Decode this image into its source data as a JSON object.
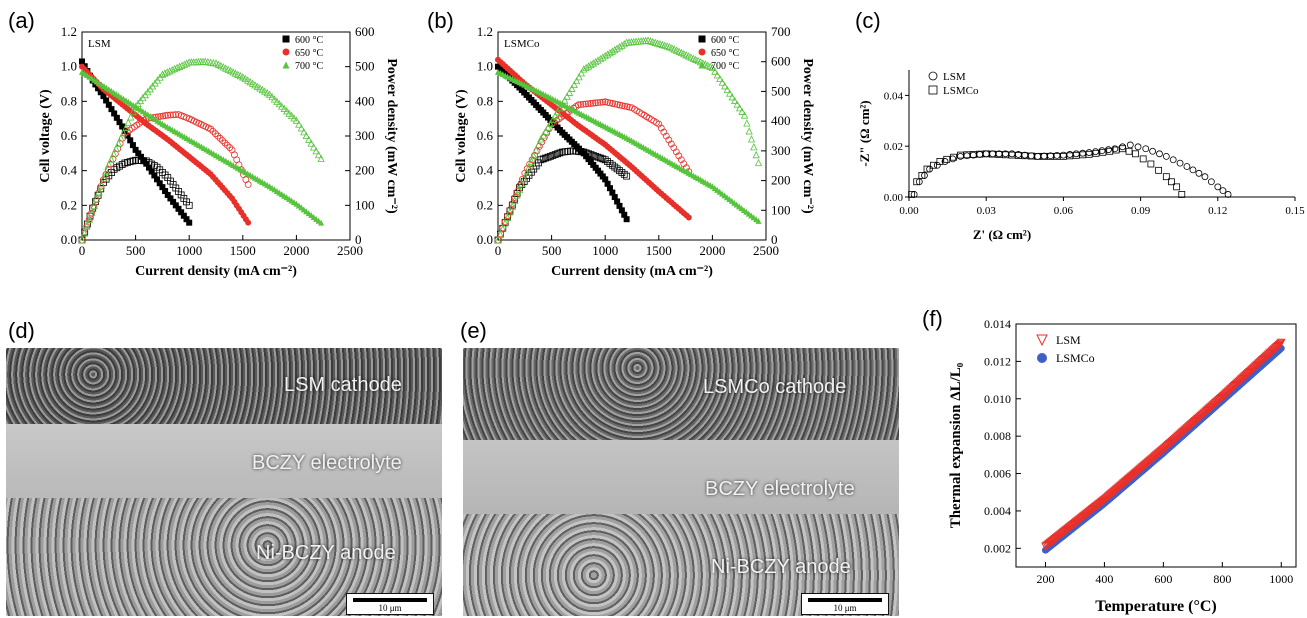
{
  "panels": {
    "a": {
      "letter": "(a)"
    },
    "b": {
      "letter": "(b)"
    },
    "c": {
      "letter": "(c)"
    },
    "d": {
      "letter": "(d)"
    },
    "e": {
      "letter": "(e)"
    },
    "f": {
      "letter": "(f)"
    }
  },
  "sem": {
    "d": {
      "labels": [
        "LSM cathode",
        "BCZY electrolyte",
        "Ni-BCZY anode"
      ],
      "scale": "10 μm"
    },
    "e": {
      "labels": [
        "LSMCo cathode",
        "BCZY electrolyte",
        "Ni-BCZY anode"
      ],
      "scale": "10 μm"
    }
  },
  "chart_data": [
    {
      "id": "a",
      "type": "scatter",
      "inset_label": "LSM",
      "xlabel": "Current density (mA cm⁻²)",
      "ylabel": "Cell voltage (V)",
      "y2label": "Power density (mW cm⁻²)",
      "xlim": [
        0,
        2500
      ],
      "ylim": [
        0,
        1.2
      ],
      "y2lim": [
        0,
        600
      ],
      "xticks": [
        0,
        500,
        1000,
        1500,
        2000,
        2500
      ],
      "yticks": [
        0.0,
        0.2,
        0.4,
        0.6,
        0.8,
        1.0,
        1.2
      ],
      "y2ticks": [
        0,
        100,
        200,
        300,
        400,
        500,
        600
      ],
      "series": [
        {
          "name": "600 °C",
          "color": "#000000",
          "marker": "square",
          "iv": [
            [
              0,
              1.03
            ],
            [
              100,
              0.92
            ],
            [
              200,
              0.83
            ],
            [
              300,
              0.73
            ],
            [
              400,
              0.63
            ],
            [
              500,
              0.52
            ],
            [
              600,
              0.44
            ],
            [
              700,
              0.35
            ],
            [
              800,
              0.26
            ],
            [
              900,
              0.18
            ],
            [
              1000,
              0.1
            ]
          ],
          "power": [
            [
              0,
              0
            ],
            [
              100,
              92
            ],
            [
              200,
              166
            ],
            [
              300,
              204
            ],
            [
              400,
              222
            ],
            [
              500,
              230
            ],
            [
              600,
              228
            ],
            [
              700,
              210
            ],
            [
              800,
              180
            ],
            [
              900,
              140
            ],
            [
              1000,
              100
            ]
          ]
        },
        {
          "name": "650 °C",
          "color": "#e8302a",
          "marker": "circle",
          "iv": [
            [
              0,
              1.0
            ],
            [
              200,
              0.87
            ],
            [
              400,
              0.77
            ],
            [
              600,
              0.67
            ],
            [
              800,
              0.58
            ],
            [
              1000,
              0.48
            ],
            [
              1200,
              0.38
            ],
            [
              1400,
              0.24
            ],
            [
              1550,
              0.1
            ]
          ],
          "power": [
            [
              0,
              0
            ],
            [
              200,
              174
            ],
            [
              400,
              308
            ],
            [
              600,
              350
            ],
            [
              800,
              360
            ],
            [
              900,
              362
            ],
            [
              1000,
              350
            ],
            [
              1200,
              320
            ],
            [
              1400,
              260
            ],
            [
              1550,
              160
            ]
          ]
        },
        {
          "name": "700 °C",
          "color": "#56c43d",
          "marker": "triangle",
          "iv": [
            [
              0,
              0.97
            ],
            [
              250,
              0.87
            ],
            [
              500,
              0.77
            ],
            [
              750,
              0.67
            ],
            [
              1000,
              0.58
            ],
            [
              1250,
              0.49
            ],
            [
              1500,
              0.4
            ],
            [
              1750,
              0.31
            ],
            [
              2000,
              0.21
            ],
            [
              2230,
              0.1
            ]
          ],
          "power": [
            [
              0,
              0
            ],
            [
              250,
              218
            ],
            [
              500,
              385
            ],
            [
              750,
              478
            ],
            [
              1000,
              513
            ],
            [
              1150,
              515
            ],
            [
              1250,
              510
            ],
            [
              1500,
              470
            ],
            [
              1750,
              420
            ],
            [
              2000,
              345
            ],
            [
              2230,
              235
            ]
          ]
        }
      ]
    },
    {
      "id": "b",
      "type": "scatter",
      "inset_label": "LSMCo",
      "xlabel": "Current density (mA cm⁻²)",
      "ylabel": "Cell voltage (V)",
      "y2label": "Power density (mW cm⁻²)",
      "xlim": [
        0,
        2500
      ],
      "ylim": [
        0,
        1.2
      ],
      "y2lim": [
        0,
        700
      ],
      "xticks": [
        0,
        500,
        1000,
        1500,
        2000,
        2500
      ],
      "yticks": [
        0.0,
        0.2,
        0.4,
        0.6,
        0.8,
        1.0,
        1.2
      ],
      "y2ticks": [
        0,
        100,
        200,
        300,
        400,
        500,
        600,
        700
      ],
      "series": [
        {
          "name": "600 °C",
          "color": "#000000",
          "marker": "square",
          "iv": [
            [
              0,
              1.0
            ],
            [
              200,
              0.88
            ],
            [
              400,
              0.75
            ],
            [
              600,
              0.62
            ],
            [
              800,
              0.5
            ],
            [
              1000,
              0.35
            ],
            [
              1200,
              0.12
            ]
          ],
          "power": [
            [
              0,
              0
            ],
            [
              200,
              176
            ],
            [
              400,
              270
            ],
            [
              600,
              296
            ],
            [
              700,
              300
            ],
            [
              800,
              296
            ],
            [
              1000,
              270
            ],
            [
              1200,
              215
            ]
          ]
        },
        {
          "name": "650 °C",
          "color": "#e8302a",
          "marker": "circle",
          "iv": [
            [
              0,
              1.04
            ],
            [
              250,
              0.9
            ],
            [
              500,
              0.78
            ],
            [
              750,
              0.66
            ],
            [
              1000,
              0.55
            ],
            [
              1250,
              0.42
            ],
            [
              1500,
              0.28
            ],
            [
              1780,
              0.13
            ]
          ],
          "power": [
            [
              0,
              0
            ],
            [
              250,
              225
            ],
            [
              500,
              390
            ],
            [
              750,
              455
            ],
            [
              1000,
              465
            ],
            [
              1250,
              445
            ],
            [
              1500,
              390
            ],
            [
              1780,
              230
            ]
          ]
        },
        {
          "name": "700 °C",
          "color": "#56c43d",
          "marker": "triangle",
          "iv": [
            [
              0,
              0.97
            ],
            [
              400,
              0.85
            ],
            [
              800,
              0.72
            ],
            [
              1200,
              0.59
            ],
            [
              1600,
              0.45
            ],
            [
              2000,
              0.31
            ],
            [
              2430,
              0.11
            ]
          ],
          "power": [
            [
              0,
              0
            ],
            [
              400,
              340
            ],
            [
              800,
              575
            ],
            [
              1200,
              665
            ],
            [
              1400,
              672
            ],
            [
              1600,
              650
            ],
            [
              2000,
              580
            ],
            [
              2300,
              420
            ],
            [
              2430,
              260
            ]
          ]
        }
      ]
    },
    {
      "id": "c",
      "type": "scatter",
      "xlabel": "Z' (Ω cm²)",
      "ylabel": "-Z\" (Ω cm²)",
      "xlim": [
        0,
        0.15
      ],
      "ylim": [
        0,
        0.05
      ],
      "xticks": [
        0.0,
        0.03,
        0.06,
        0.09,
        0.12,
        0.15
      ],
      "yticks": [
        0.0,
        0.02,
        0.04
      ],
      "series": [
        {
          "name": "LSM",
          "marker": "circle-open",
          "points": [
            [
              0.002,
              0.001
            ],
            [
              0.004,
              0.006
            ],
            [
              0.008,
              0.011
            ],
            [
              0.014,
              0.014
            ],
            [
              0.02,
              0.016
            ],
            [
              0.03,
              0.017
            ],
            [
              0.04,
              0.017
            ],
            [
              0.05,
              0.016
            ],
            [
              0.06,
              0.0165
            ],
            [
              0.07,
              0.0175
            ],
            [
              0.08,
              0.019
            ],
            [
              0.086,
              0.0205
            ],
            [
              0.092,
              0.019
            ],
            [
              0.1,
              0.016
            ],
            [
              0.108,
              0.012
            ],
            [
              0.115,
              0.008
            ],
            [
              0.12,
              0.004
            ],
            [
              0.124,
              0.001
            ]
          ]
        },
        {
          "name": "LSMCo",
          "marker": "square-open",
          "points": [
            [
              0.001,
              0.001
            ],
            [
              0.003,
              0.006
            ],
            [
              0.007,
              0.011
            ],
            [
              0.012,
              0.014
            ],
            [
              0.02,
              0.0165
            ],
            [
              0.03,
              0.017
            ],
            [
              0.04,
              0.0165
            ],
            [
              0.05,
              0.016
            ],
            [
              0.06,
              0.016
            ],
            [
              0.07,
              0.0168
            ],
            [
              0.078,
              0.018
            ],
            [
              0.083,
              0.019
            ],
            [
              0.088,
              0.017
            ],
            [
              0.094,
              0.013
            ],
            [
              0.1,
              0.008
            ],
            [
              0.104,
              0.004
            ],
            [
              0.106,
              0.001
            ]
          ]
        }
      ]
    },
    {
      "id": "f",
      "type": "scatter",
      "xlabel": "Temperature (°C)",
      "ylabel": "Thermal expansion ΔL/L₀",
      "xlim": [
        100,
        1050
      ],
      "ylim": [
        0.001,
        0.014
      ],
      "xticks": [
        200,
        400,
        600,
        800,
        1000
      ],
      "yticks": [
        0.002,
        0.004,
        0.006,
        0.008,
        0.01,
        0.012,
        0.014
      ],
      "series": [
        {
          "name": "LSM",
          "marker": "triangle-down-open",
          "color": "#e8302a",
          "points": [
            [
              200,
              0.0021
            ],
            [
              400,
              0.0046
            ],
            [
              600,
              0.0073
            ],
            [
              800,
              0.0101
            ],
            [
              1000,
              0.013
            ]
          ]
        },
        {
          "name": "LSMCo",
          "marker": "circle-filled",
          "color": "#3f5fc8",
          "points": [
            [
              200,
              0.0019
            ],
            [
              400,
              0.0044
            ],
            [
              600,
              0.0071
            ],
            [
              800,
              0.0099
            ],
            [
              1000,
              0.0127
            ]
          ]
        }
      ]
    }
  ]
}
